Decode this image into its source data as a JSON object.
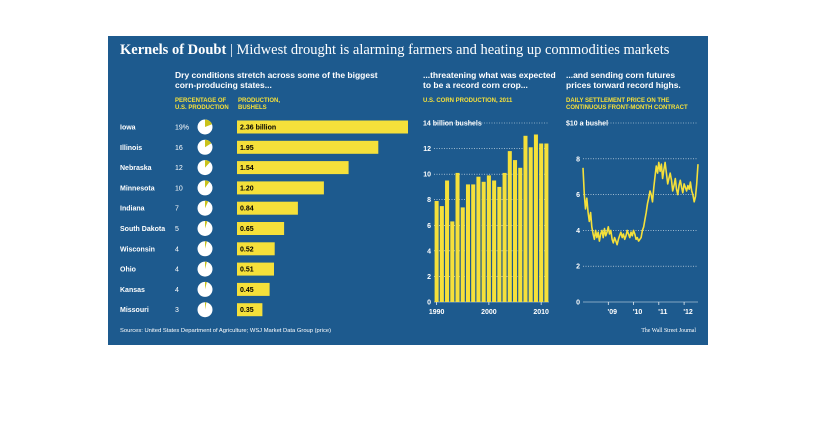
{
  "headline": {
    "title": "Kernels of Doubt",
    "separator": "|",
    "subtitle": "Midwest drought is alarming farmers and heating up commodities markets"
  },
  "colors": {
    "panel": "#1d5a8e",
    "accent": "#f5e03a",
    "text": "#ffffff",
    "bar_text": "#000000"
  },
  "left": {
    "heading": "Dry conditions stretch across some of the biggest corn-producing states...",
    "pct_header": "PERCENTAGE OF U.S. PRODUCTION",
    "prod_header": "PRODUCTION, BUSHELS"
  },
  "middle": {
    "heading": "...threatening what was expected to be a record corn crop...",
    "subheading": "U.S. CORN PRODUCTION, 2011"
  },
  "right": {
    "heading": "...and sending corn futures prices torward record highs.",
    "subheading": "DAILY SETTLEMENT PRICE ON THE CONTINUOUS FRONT-MONTH CONTRACT"
  },
  "footer": {
    "source": "Sources: United States Department of Agriculture; WSJ Market Data Group (price)",
    "credit": "The Wall Street Journal"
  },
  "chart_data": [
    {
      "type": "bar",
      "orientation": "horizontal",
      "categories": [
        "Iowa",
        "Illinois",
        "Nebraska",
        "Minnesota",
        "Indiana",
        "South Dakota",
        "Wisconsin",
        "Ohio",
        "Kansas",
        "Missouri"
      ],
      "percent_labels": [
        "19%",
        "16",
        "12",
        "10",
        "7",
        "5",
        "4",
        "4",
        "4",
        "3"
      ],
      "percent_values": [
        19,
        16,
        12,
        10,
        7,
        5,
        4,
        4,
        4,
        3
      ],
      "values": [
        2.36,
        1.95,
        1.54,
        1.2,
        0.84,
        0.65,
        0.52,
        0.51,
        0.45,
        0.35
      ],
      "value_labels": [
        "2.36 billion",
        "1.95",
        "1.54",
        "1.20",
        "0.84",
        "0.65",
        "0.52",
        "0.51",
        "0.45",
        "0.35"
      ]
    },
    {
      "type": "bar",
      "x": [
        1990,
        1991,
        1992,
        1993,
        1994,
        1995,
        1996,
        1997,
        1998,
        1999,
        2000,
        2001,
        2002,
        2003,
        2004,
        2005,
        2006,
        2007,
        2008,
        2009,
        2010,
        2011
      ],
      "values": [
        7.9,
        7.5,
        9.5,
        6.3,
        10.1,
        7.4,
        9.2,
        9.2,
        9.8,
        9.4,
        9.9,
        9.5,
        9.0,
        10.1,
        11.8,
        11.1,
        10.5,
        13.0,
        12.1,
        13.1,
        12.4,
        12.4
      ],
      "ylim": [
        0,
        14
      ],
      "yticks": [
        0,
        2,
        4,
        6,
        8,
        10,
        12,
        14
      ],
      "ytick_labels": [
        "0",
        "2",
        "4",
        "6",
        "8",
        "10",
        "12",
        "14 billion bushels"
      ],
      "xticks": [
        1990,
        2000,
        2010
      ],
      "xtick_labels": [
        "1990",
        "2000",
        "2010"
      ],
      "grid": true
    },
    {
      "type": "line",
      "x": [
        2008.0,
        2008.05,
        2008.1,
        2008.15,
        2008.2,
        2008.25,
        2008.3,
        2008.35,
        2008.4,
        2008.45,
        2008.5,
        2008.55,
        2008.6,
        2008.65,
        2008.7,
        2008.75,
        2008.8,
        2008.85,
        2008.9,
        2008.95,
        2009.0,
        2009.05,
        2009.1,
        2009.15,
        2009.2,
        2009.25,
        2009.3,
        2009.35,
        2009.4,
        2009.45,
        2009.5,
        2009.55,
        2009.6,
        2009.65,
        2009.7,
        2009.75,
        2009.8,
        2009.85,
        2009.9,
        2009.95,
        2010.0,
        2010.05,
        2010.1,
        2010.15,
        2010.2,
        2010.25,
        2010.3,
        2010.35,
        2010.4,
        2010.45,
        2010.5,
        2010.55,
        2010.6,
        2010.65,
        2010.7,
        2010.75,
        2010.8,
        2010.85,
        2010.9,
        2010.95,
        2011.0,
        2011.05,
        2011.1,
        2011.15,
        2011.2,
        2011.25,
        2011.3,
        2011.35,
        2011.4,
        2011.45,
        2011.5,
        2011.55,
        2011.6,
        2011.65,
        2011.7,
        2011.75,
        2011.8,
        2011.85,
        2011.9,
        2011.95,
        2012.0,
        2012.05,
        2012.1,
        2012.15,
        2012.2,
        2012.25,
        2012.3,
        2012.35,
        2012.4,
        2012.45,
        2012.5,
        2012.55
      ],
      "values": [
        7.5,
        6.0,
        5.2,
        5.8,
        5.0,
        4.5,
        5.0,
        4.2,
        3.8,
        3.5,
        4.0,
        3.6,
        3.9,
        3.4,
        3.8,
        4.0,
        3.6,
        4.1,
        3.7,
        3.9,
        4.2,
        3.8,
        4.0,
        3.5,
        3.3,
        3.6,
        3.4,
        3.2,
        3.5,
        3.7,
        3.9,
        3.6,
        3.8,
        3.5,
        3.7,
        4.0,
        3.8,
        3.6,
        3.9,
        3.7,
        4.0,
        3.8,
        3.5,
        3.6,
        3.4,
        3.5,
        3.6,
        4.0,
        4.2,
        4.6,
        5.0,
        5.5,
        5.8,
        6.2,
        6.0,
        5.6,
        6.4,
        7.0,
        7.6,
        7.2,
        7.8,
        7.3,
        7.7,
        6.9,
        7.4,
        7.8,
        7.2,
        6.6,
        6.9,
        7.2,
        6.8,
        6.2,
        6.5,
        6.9,
        6.3,
        6.0,
        6.5,
        6.8,
        6.4,
        6.1,
        6.6,
        6.4,
        6.2,
        6.5,
        6.3,
        6.7,
        6.2,
        6.0,
        5.6,
        5.9,
        6.6,
        7.7
      ],
      "ylim": [
        0,
        10
      ],
      "yticks": [
        0,
        2,
        4,
        6,
        8,
        10
      ],
      "ytick_labels": [
        "0",
        "2",
        "4",
        "6",
        "8",
        "$10 a bushel"
      ],
      "xticks": [
        2009,
        2010,
        2011,
        2012
      ],
      "xtick_labels": [
        "'09",
        "'10",
        "'11",
        "'12"
      ],
      "grid": true
    }
  ]
}
